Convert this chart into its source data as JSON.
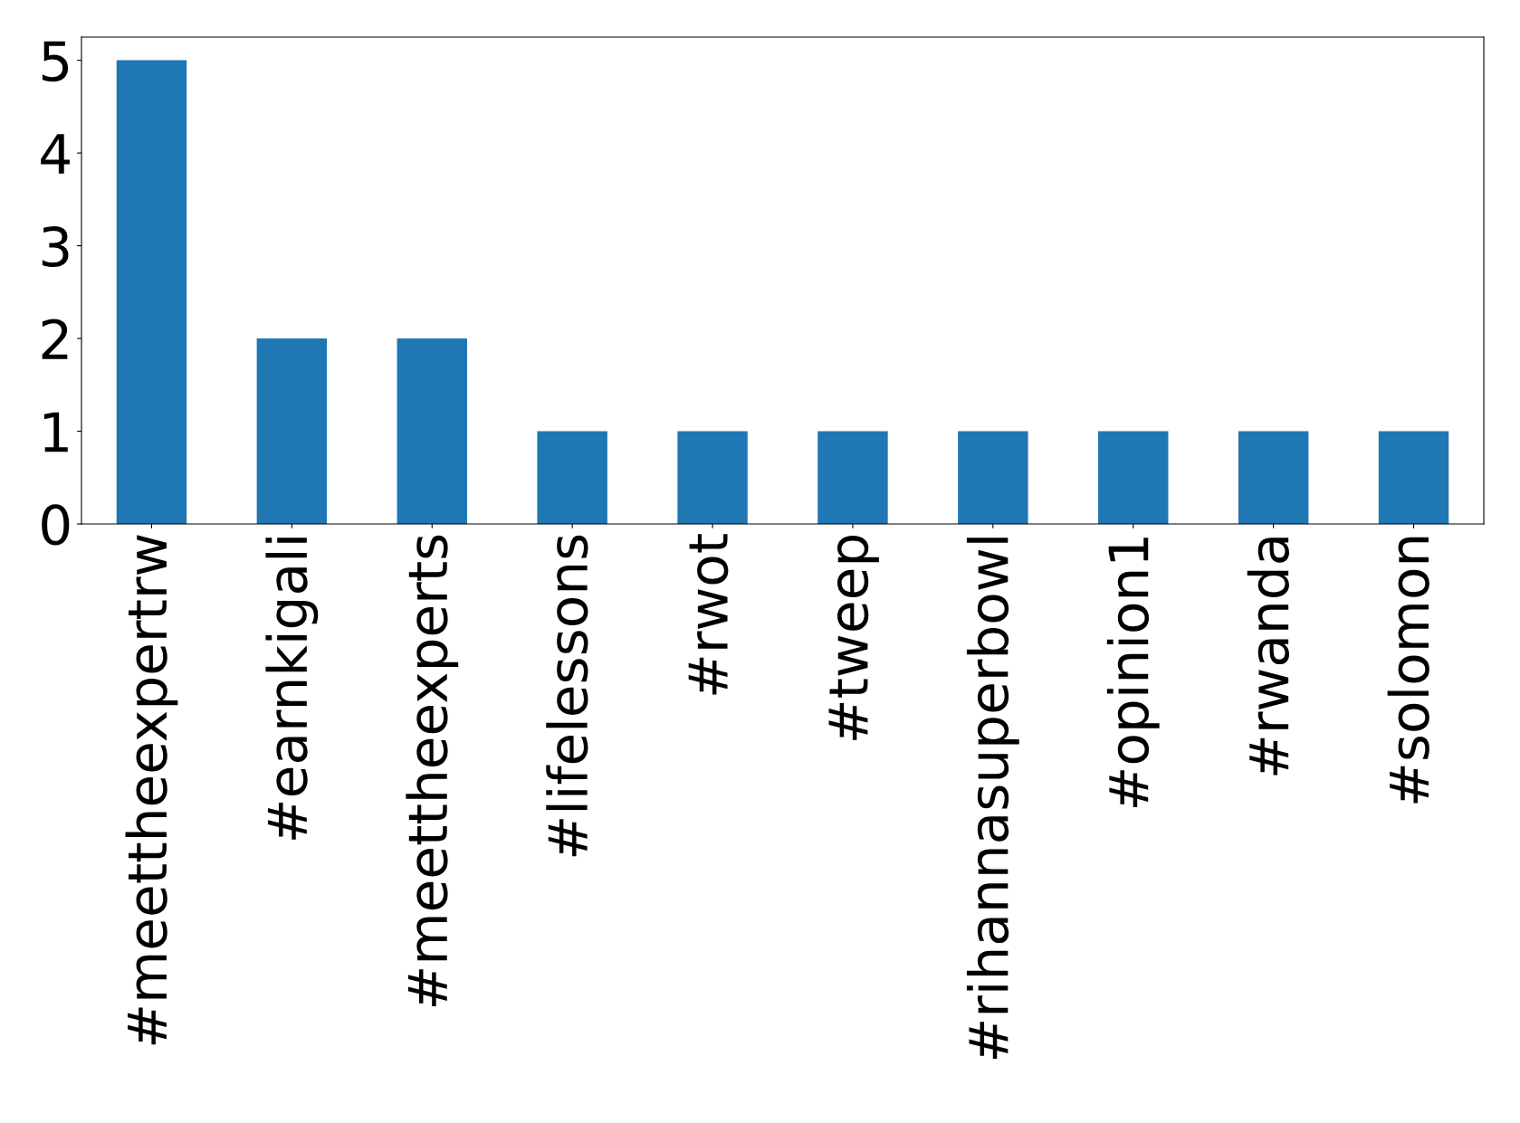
{
  "chart_data": {
    "type": "bar",
    "categories": [
      "#meettheexpertrw",
      "#earnkigali",
      "#meettheexperts",
      "#lifelessons",
      "#rwot",
      "#tweep",
      "#rihannasuperbowl",
      "#opinion1",
      "#rwanda",
      "#solomon"
    ],
    "values": [
      5,
      2,
      2,
      1,
      1,
      1,
      1,
      1,
      1,
      1
    ],
    "color": "#1f77b4",
    "ylim": [
      0,
      5.25
    ],
    "yticks": [
      0,
      1,
      2,
      3,
      4,
      5
    ],
    "grid": false,
    "legend": false
  }
}
